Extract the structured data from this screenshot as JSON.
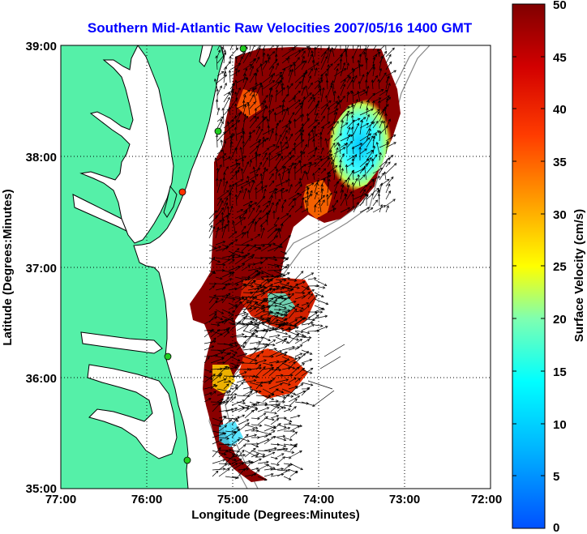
{
  "title": "Southern Mid-Atlantic Raw Velocities 2007/05/16 1400 GMT",
  "xlabel": "Longitude (Degrees:Minutes)",
  "ylabel": "Latitude (Degrees:Minutes)",
  "colorbar_label": "Surface Velocity (cm/s)",
  "x_ticks": [
    "77:00",
    "76:00",
    "75:00",
    "74:00",
    "73:00",
    "72:00"
  ],
  "y_ticks": [
    "39:00",
    "38:00",
    "37:00",
    "36:00",
    "35:00"
  ],
  "colorbar_ticks": [
    "50",
    "45",
    "40",
    "35",
    "30",
    "25",
    "20",
    "15",
    "10",
    "5",
    "0"
  ],
  "map": {
    "lon_range": [
      -77,
      -72
    ],
    "lat_range": [
      35,
      39
    ],
    "grid": true,
    "colors": {
      "land": "#55f0a8",
      "water": "#ffffff",
      "coast": "#000000",
      "station": "#22cc22",
      "station_alt": "#ff3300",
      "arrow": "#000000",
      "bathymetry": "#888888"
    }
  },
  "colorbar_range": [
    0,
    50
  ]
}
